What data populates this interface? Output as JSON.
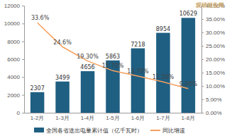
{
  "chart_data": {
    "type": "bar",
    "categories": [
      "1-2月",
      "1-3月",
      "1-4月",
      "1-5月",
      "1-6月",
      "1-7月",
      "1-8月"
    ],
    "series": [
      {
        "name": "全国各省送出电量累计值（亿千瓦时）",
        "type": "bar",
        "color": "#1f5f82",
        "values": [
          2307,
          3499,
          4656,
          5863,
          7218,
          8954,
          10629
        ],
        "data_labels": true
      },
      {
        "name": "同比增速",
        "type": "line",
        "color": "#f5a05f",
        "axis": "y2",
        "values": [
          33.6,
          24.6,
          19.3,
          15.7,
          13.7,
          11.5,
          9.0
        ],
        "value_labels": [
          "33.6%",
          "24.6%",
          "19.30%",
          "15.70%",
          "13.70%",
          "11.50%",
          "9.00%"
        ],
        "data_labels": true
      }
    ],
    "ylim": [
      0,
      12000
    ],
    "yticks": [
      0,
      2000,
      4000,
      6000,
      8000,
      10000,
      12000
    ],
    "y2lim": [
      0,
      40
    ],
    "y2ticks": [
      {
        "value": 0,
        "label": "0.00%"
      },
      {
        "value": 5,
        "label": "5.00%"
      },
      {
        "value": 10,
        "label": "10.00%"
      },
      {
        "value": 15,
        "label": "15.00%"
      },
      {
        "value": 20,
        "label": "20.00%"
      },
      {
        "value": 25,
        "label": "25.00%"
      },
      {
        "value": 30,
        "label": "30.00%"
      },
      {
        "value": 35,
        "label": "35.00%"
      },
      {
        "value": 40,
        "label": "40.00%"
      }
    ],
    "grid": false,
    "legend": "bottom",
    "annotations": [
      "观研报告网"
    ]
  }
}
